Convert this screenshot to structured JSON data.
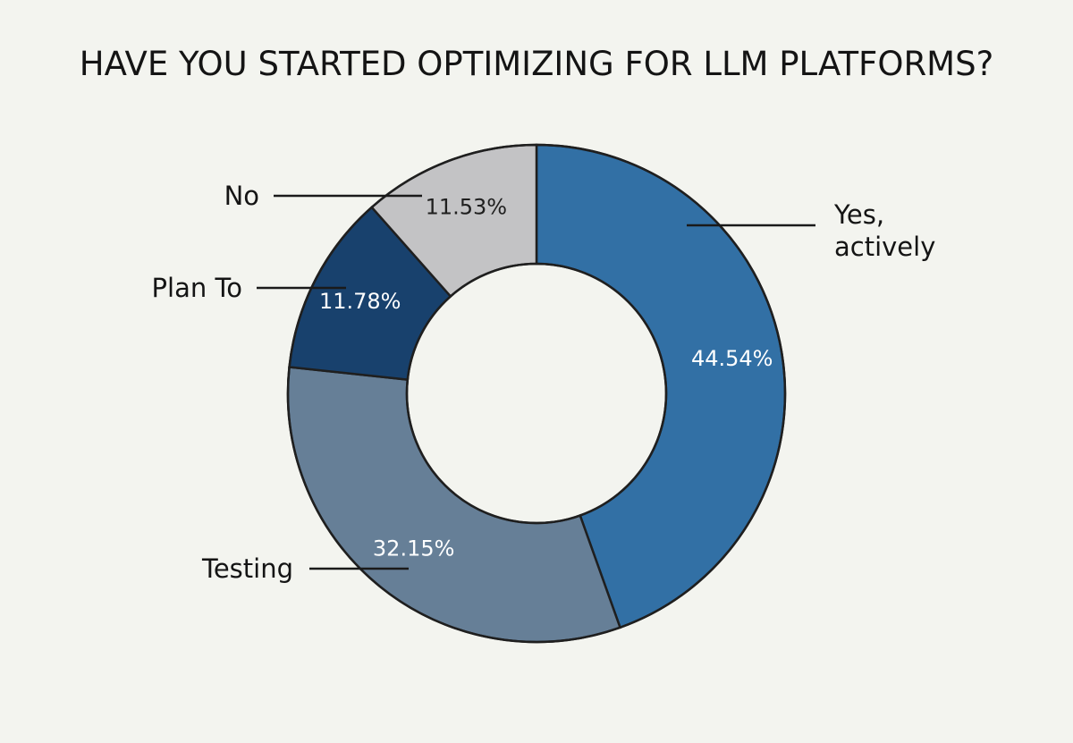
{
  "chart_data": {
    "type": "pie",
    "variant": "donut",
    "title": "HAVE YOU STARTED OPTIMIZING FOR LLM PLATFORMS?",
    "categories": [
      "Yes, actively",
      "Testing",
      "Plan To",
      "No"
    ],
    "values": [
      44.54,
      32.15,
      11.78,
      11.53
    ],
    "value_labels": [
      "44.54%",
      "32.15%",
      "11.78%",
      "11.53%"
    ],
    "callout_lines": [
      [
        "Yes,",
        "actively"
      ],
      [
        "Testing"
      ],
      [
        "Plan To"
      ],
      [
        "No"
      ]
    ],
    "colors": [
      "#3270a5",
      "#667f97",
      "#18416d",
      "#c3c3c5"
    ],
    "value_label_colors": [
      "#ffffff",
      "#ffffff",
      "#ffffff",
      "#1f1f1f"
    ],
    "start_angle": "12 o'clock",
    "direction": "clockwise",
    "legend": "none (direct callout labels)"
  }
}
